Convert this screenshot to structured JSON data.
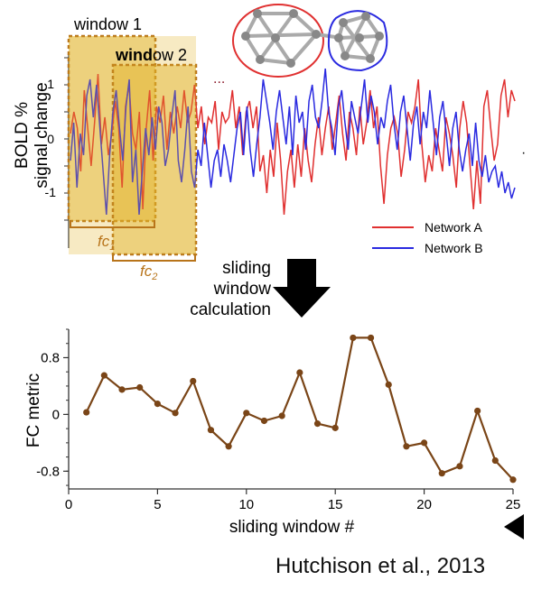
{
  "top_panel": {
    "ylabel_line1": "BOLD %",
    "ylabel_line2": "signal change",
    "yticks": [
      "1",
      "0",
      "-1"
    ],
    "window1_label": "window 1",
    "window2_label_bold": "wind",
    "window2_label_rest": "ow 2",
    "ellipsis": "...",
    "fc1_label": "fc",
    "fc1_sub": "1",
    "fc2_label": "fc",
    "fc2_sub": "2",
    "legend": [
      {
        "name": "Network A",
        "color": "#e03030"
      },
      {
        "name": "Network B",
        "color": "#2a2ae0"
      }
    ],
    "network_a": [
      0.1,
      0.5,
      0.2,
      -0.6,
      0.9,
      0.2,
      -0.5,
      0.3,
      1.2,
      -0.1,
      0.4,
      -0.3,
      0.1,
      0.7,
      0.2,
      -0.9,
      0.6,
      1.0,
      0.1,
      -0.2,
      0.5,
      -1.3,
      0.2,
      0.9,
      -0.4,
      0.6,
      0.3,
      0.8,
      -0.2,
      0.5,
      0.1,
      0.6,
      0.2,
      0.9,
      0.3,
      0.5,
      1.0,
      0.2,
      0.6,
      -0.1,
      0.4,
      0.3,
      0.7,
      -0.2,
      0.5,
      0.3,
      0.4,
      0.9,
      0.2,
      0.6,
      -0.3,
      0.5,
      0.7,
      0.2,
      0.6,
      -0.6,
      -0.3,
      -1.0,
      -0.2,
      -0.7,
      0.3,
      -0.4,
      -1.4,
      -0.6,
      -0.2,
      -0.9,
      -0.1,
      -0.7,
      0.2,
      -0.4,
      -0.8,
      -0.1,
      0.4,
      -0.3,
      0.2,
      0.6,
      -0.2,
      0.3,
      0.8,
      0.1,
      -0.4,
      0.5,
      0.2,
      -0.3,
      0.6,
      -0.1,
      0.3,
      0.9,
      0.2,
      0.6,
      -0.5,
      -1.2,
      -0.3,
      0.2,
      0.4,
      0.1,
      -0.7,
      -0.2,
      0.5,
      0.3,
      0.6,
      1.1,
      -0.1,
      -0.8,
      -0.3,
      -0.6,
      0.2,
      -0.2,
      -0.6,
      0.4,
      0.1,
      -0.3,
      -0.9,
      0.2,
      0.7,
      0.3,
      -0.5,
      -1.3,
      -0.4,
      -1.2,
      0.6,
      0.9,
      0.2,
      -0.4,
      -0.1,
      0.8,
      1.1,
      0.4,
      0.9,
      0.7
    ],
    "network_b": [
      -0.4,
      0.3,
      -0.9,
      0.1,
      -0.3,
      0.8,
      1.1,
      0.4,
      1.0,
      0.2,
      -0.6,
      -1.4,
      -0.3,
      0.5,
      0.9,
      0.2,
      -0.4,
      0.6,
      1.1,
      -0.8,
      -0.2,
      -1.4,
      -0.6,
      0.2,
      -0.3,
      0.4,
      -0.2,
      0.6,
      0.3,
      -0.5,
      -0.2,
      0.4,
      0.9,
      -0.4,
      -0.8,
      -0.2,
      0.6,
      -0.6,
      -0.9,
      -0.2,
      -0.5,
      0.3,
      -0.3,
      -0.9,
      -0.4,
      -0.2,
      -0.7,
      -0.1,
      -0.4,
      -0.8,
      -0.3,
      0.2,
      0.5,
      -0.3,
      0.6,
      -0.2,
      -0.7,
      -0.1,
      0.4,
      1.1,
      0.7,
      0.3,
      -0.2,
      0.5,
      0.9,
      0.4,
      -0.1,
      0.6,
      -0.3,
      0.8,
      0.3,
      0.5,
      -0.2,
      0.7,
      1.0,
      0.4,
      0.2,
      0.7,
      1.3,
      0.5,
      0.2,
      -0.3,
      0.6,
      0.9,
      0.3,
      -0.2,
      0.7,
      0.4,
      0.1,
      0.6,
      1.1,
      0.3,
      0.8,
      0.5,
      -0.1,
      0.4,
      0.2,
      0.7,
      1.0,
      0.3,
      -0.2,
      0.5,
      0.8,
      0.2,
      -0.4,
      0.3,
      0.6,
      -0.1,
      0.5,
      0.2,
      0.9,
      0.3,
      -0.3,
      0.4,
      0.7,
      0.1,
      -0.5,
      0.2,
      0.5,
      -0.2,
      -0.6,
      -0.2,
      0.1,
      -0.5,
      0.3,
      -0.4,
      -0.7,
      -0.3,
      -0.8,
      -0.6,
      -0.5,
      -0.9,
      -0.6,
      -1.0,
      -0.8,
      -1.1,
      -0.9
    ]
  },
  "arrow_label": [
    "sliding",
    "window",
    "calculation"
  ],
  "chart_data": {
    "type": "line",
    "xlabel": "sliding window #",
    "ylabel": "FC metric",
    "xlim": [
      0,
      25
    ],
    "ylim": [
      -1.05,
      1.2
    ],
    "xticks": [
      0,
      5,
      10,
      15,
      20,
      25
    ],
    "yticks": [
      0.8,
      0,
      -0.8
    ],
    "ytick_labels": [
      "0.8",
      "0",
      "-0.8"
    ],
    "color": "#7a4517",
    "x": [
      1,
      2,
      3,
      4,
      5,
      6,
      7,
      8,
      9,
      10,
      11,
      12,
      13,
      14,
      15,
      16,
      17,
      18,
      19,
      20,
      21,
      22,
      23,
      24,
      25
    ],
    "y": [
      0.03,
      0.55,
      0.35,
      0.38,
      0.15,
      0.02,
      0.47,
      -0.22,
      -0.45,
      0.02,
      -0.09,
      -0.02,
      0.59,
      -0.13,
      -0.19,
      1.08,
      1.08,
      0.42,
      -0.45,
      -0.4,
      -0.83,
      -0.73,
      0.05,
      -0.65,
      -0.92
    ]
  },
  "citation": "Hutchison et al., 2013"
}
